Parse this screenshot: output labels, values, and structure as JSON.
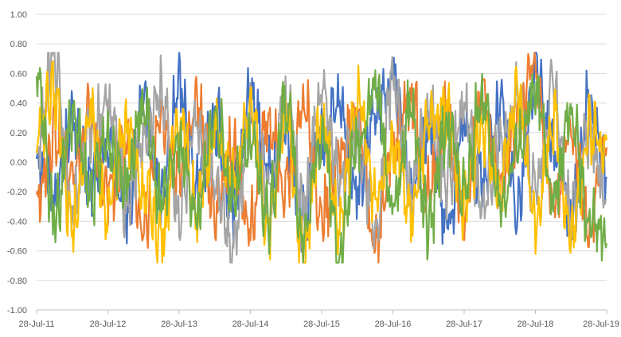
{
  "chart_data": {
    "type": "line",
    "title": "",
    "xlabel": "",
    "ylabel": "",
    "ylim": [
      -1.0,
      1.0
    ],
    "xlim": [
      "2011-07-28",
      "2019-07-28"
    ],
    "yticks": [
      1.0,
      0.8,
      0.6,
      0.4,
      0.2,
      0.0,
      -0.2,
      -0.4,
      -0.6,
      -0.8,
      -1.0
    ],
    "ytick_labels": [
      "1.00",
      "0.80",
      "0.60",
      "0.40",
      "0.20",
      "0.00",
      "-0.20",
      "-0.40",
      "-0.60",
      "-0.80",
      "-1.00"
    ],
    "xtick_labels": [
      "28-Jul-11",
      "28-Jul-12",
      "28-Jul-13",
      "28-Jul-14",
      "28-Jul-15",
      "28-Jul-16",
      "28-Jul-17",
      "28-Jul-18",
      "28-Jul-19"
    ],
    "grid": "horizontal",
    "legend": "none",
    "series": [
      {
        "color": "#4472c4",
        "x": [
          "2011-07-28",
          "2011-10-28",
          "2012-01-28",
          "2012-04-28",
          "2012-07-28",
          "2012-10-28",
          "2013-01-28",
          "2013-04-28",
          "2013-07-28",
          "2013-10-28",
          "2014-01-28",
          "2014-04-28",
          "2014-07-28",
          "2014-10-28",
          "2015-01-28",
          "2015-04-28",
          "2015-07-28",
          "2015-10-28",
          "2016-01-28",
          "2016-04-28",
          "2016-07-28",
          "2016-10-28",
          "2017-01-28",
          "2017-04-28",
          "2017-07-28",
          "2017-10-28",
          "2018-01-28",
          "2018-04-28",
          "2018-07-28",
          "2018-10-28",
          "2019-01-28",
          "2019-04-28",
          "2019-07-28"
        ],
        "values": [
          0.05,
          -0.2,
          0.25,
          -0.15,
          0.1,
          -0.35,
          0.35,
          -0.25,
          0.5,
          -0.1,
          0.3,
          -0.3,
          0.45,
          -0.05,
          0.2,
          -0.4,
          0.15,
          0.35,
          -0.2,
          0.3,
          0.55,
          -0.15,
          0.25,
          -0.45,
          0.2,
          -0.1,
          0.35,
          -0.25,
          0.6,
          0.05,
          -0.3,
          0.4,
          -0.1
        ]
      },
      {
        "color": "#ed7d31",
        "x": [
          "2011-07-28",
          "2011-10-28",
          "2012-01-28",
          "2012-04-28",
          "2012-07-28",
          "2012-10-28",
          "2013-01-28",
          "2013-04-28",
          "2013-07-28",
          "2013-10-28",
          "2014-01-28",
          "2014-04-28",
          "2014-07-28",
          "2014-10-28",
          "2015-01-28",
          "2015-04-28",
          "2015-07-28",
          "2015-10-28",
          "2016-01-28",
          "2016-04-28",
          "2016-07-28",
          "2016-10-28",
          "2017-01-28",
          "2017-04-28",
          "2017-07-28",
          "2017-10-28",
          "2018-01-28",
          "2018-04-28",
          "2018-07-28",
          "2018-10-28",
          "2019-01-28",
          "2019-04-28",
          "2019-07-28"
        ],
        "values": [
          -0.25,
          0.2,
          -0.1,
          0.3,
          -0.2,
          0.15,
          -0.4,
          0.25,
          -0.05,
          0.35,
          -0.3,
          0.1,
          -0.45,
          0.3,
          -0.15,
          0.4,
          -0.35,
          0.05,
          0.3,
          -0.55,
          0.1,
          0.45,
          -0.2,
          0.3,
          -0.35,
          0.5,
          -0.1,
          0.25,
          0.65,
          -0.3,
          0.2,
          -0.45,
          0.1
        ]
      },
      {
        "color": "#a5a5a5",
        "x": [
          "2011-07-28",
          "2011-10-28",
          "2012-01-28",
          "2012-04-28",
          "2012-07-28",
          "2012-10-28",
          "2013-01-28",
          "2013-04-28",
          "2013-07-28",
          "2013-10-28",
          "2014-01-28",
          "2014-04-28",
          "2014-07-28",
          "2014-10-28",
          "2015-01-28",
          "2015-04-28",
          "2015-07-28",
          "2015-10-28",
          "2016-01-28",
          "2016-04-28",
          "2016-07-28",
          "2016-10-28",
          "2017-01-28",
          "2017-04-28",
          "2017-07-28",
          "2017-10-28",
          "2018-01-28",
          "2018-04-28",
          "2018-07-28",
          "2018-10-28",
          "2019-01-28",
          "2019-04-28",
          "2019-07-28"
        ],
        "values": [
          0.1,
          0.72,
          -0.3,
          0.2,
          0.4,
          -0.25,
          0.15,
          0.45,
          -0.35,
          0.2,
          -0.1,
          -0.55,
          0.3,
          -0.2,
          0.4,
          -0.3,
          0.45,
          -0.1,
          0.2,
          -0.4,
          0.55,
          -0.2,
          0.35,
          -0.15,
          0.4,
          -0.3,
          0.1,
          0.45,
          -0.2,
          0.5,
          -0.35,
          0.2,
          -0.25
        ]
      },
      {
        "color": "#ffc000",
        "x": [
          "2011-07-28",
          "2011-10-28",
          "2012-01-28",
          "2012-04-28",
          "2012-07-28",
          "2012-10-28",
          "2013-01-28",
          "2013-04-28",
          "2013-07-28",
          "2013-10-28",
          "2014-01-28",
          "2014-04-28",
          "2014-07-28",
          "2014-10-28",
          "2015-01-28",
          "2015-04-28",
          "2015-07-28",
          "2015-10-28",
          "2016-01-28",
          "2016-04-28",
          "2016-07-28",
          "2016-10-28",
          "2017-01-28",
          "2017-04-28",
          "2017-07-28",
          "2017-10-28",
          "2018-01-28",
          "2018-04-28",
          "2018-07-28",
          "2018-10-28",
          "2019-01-28",
          "2019-04-28",
          "2019-07-28"
        ],
        "values": [
          0.2,
          0.45,
          -0.45,
          0.3,
          -0.35,
          0.25,
          -0.2,
          -0.5,
          0.3,
          -0.3,
          0.2,
          -0.15,
          0.35,
          -0.4,
          0.25,
          -0.65,
          0.3,
          -0.45,
          0.4,
          -0.2,
          0.15,
          -0.35,
          0.2,
          0.35,
          -0.3,
          0.25,
          -0.15,
          0.4,
          -0.35,
          0.3,
          -0.5,
          0.2,
          0.15
        ]
      },
      {
        "color": "#70ad47",
        "x": [
          "2011-07-28",
          "2011-10-28",
          "2012-01-28",
          "2012-04-28",
          "2012-07-28",
          "2012-10-28",
          "2013-01-28",
          "2013-04-28",
          "2013-07-28",
          "2013-10-28",
          "2014-01-28",
          "2014-04-28",
          "2014-07-28",
          "2014-10-28",
          "2015-01-28",
          "2015-04-28",
          "2015-07-28",
          "2015-10-28",
          "2016-01-28",
          "2016-04-28",
          "2016-07-28",
          "2016-10-28",
          "2017-01-28",
          "2017-04-28",
          "2017-07-28",
          "2017-10-28",
          "2018-01-28",
          "2018-04-28",
          "2018-07-28",
          "2018-10-28",
          "2019-01-28",
          "2019-04-28",
          "2019-07-28"
        ],
        "values": [
          0.55,
          -0.35,
          0.3,
          -0.2,
          0.15,
          -0.1,
          0.35,
          -0.3,
          0.1,
          -0.35,
          0.3,
          -0.2,
          0.1,
          -0.35,
          0.4,
          -0.5,
          0.2,
          -0.6,
          0.15,
          0.5,
          -0.3,
          0.35,
          -0.45,
          0.25,
          -0.2,
          0.45,
          -0.3,
          0.1,
          0.45,
          -0.25,
          0.3,
          -0.4,
          -0.55
        ]
      }
    ]
  }
}
